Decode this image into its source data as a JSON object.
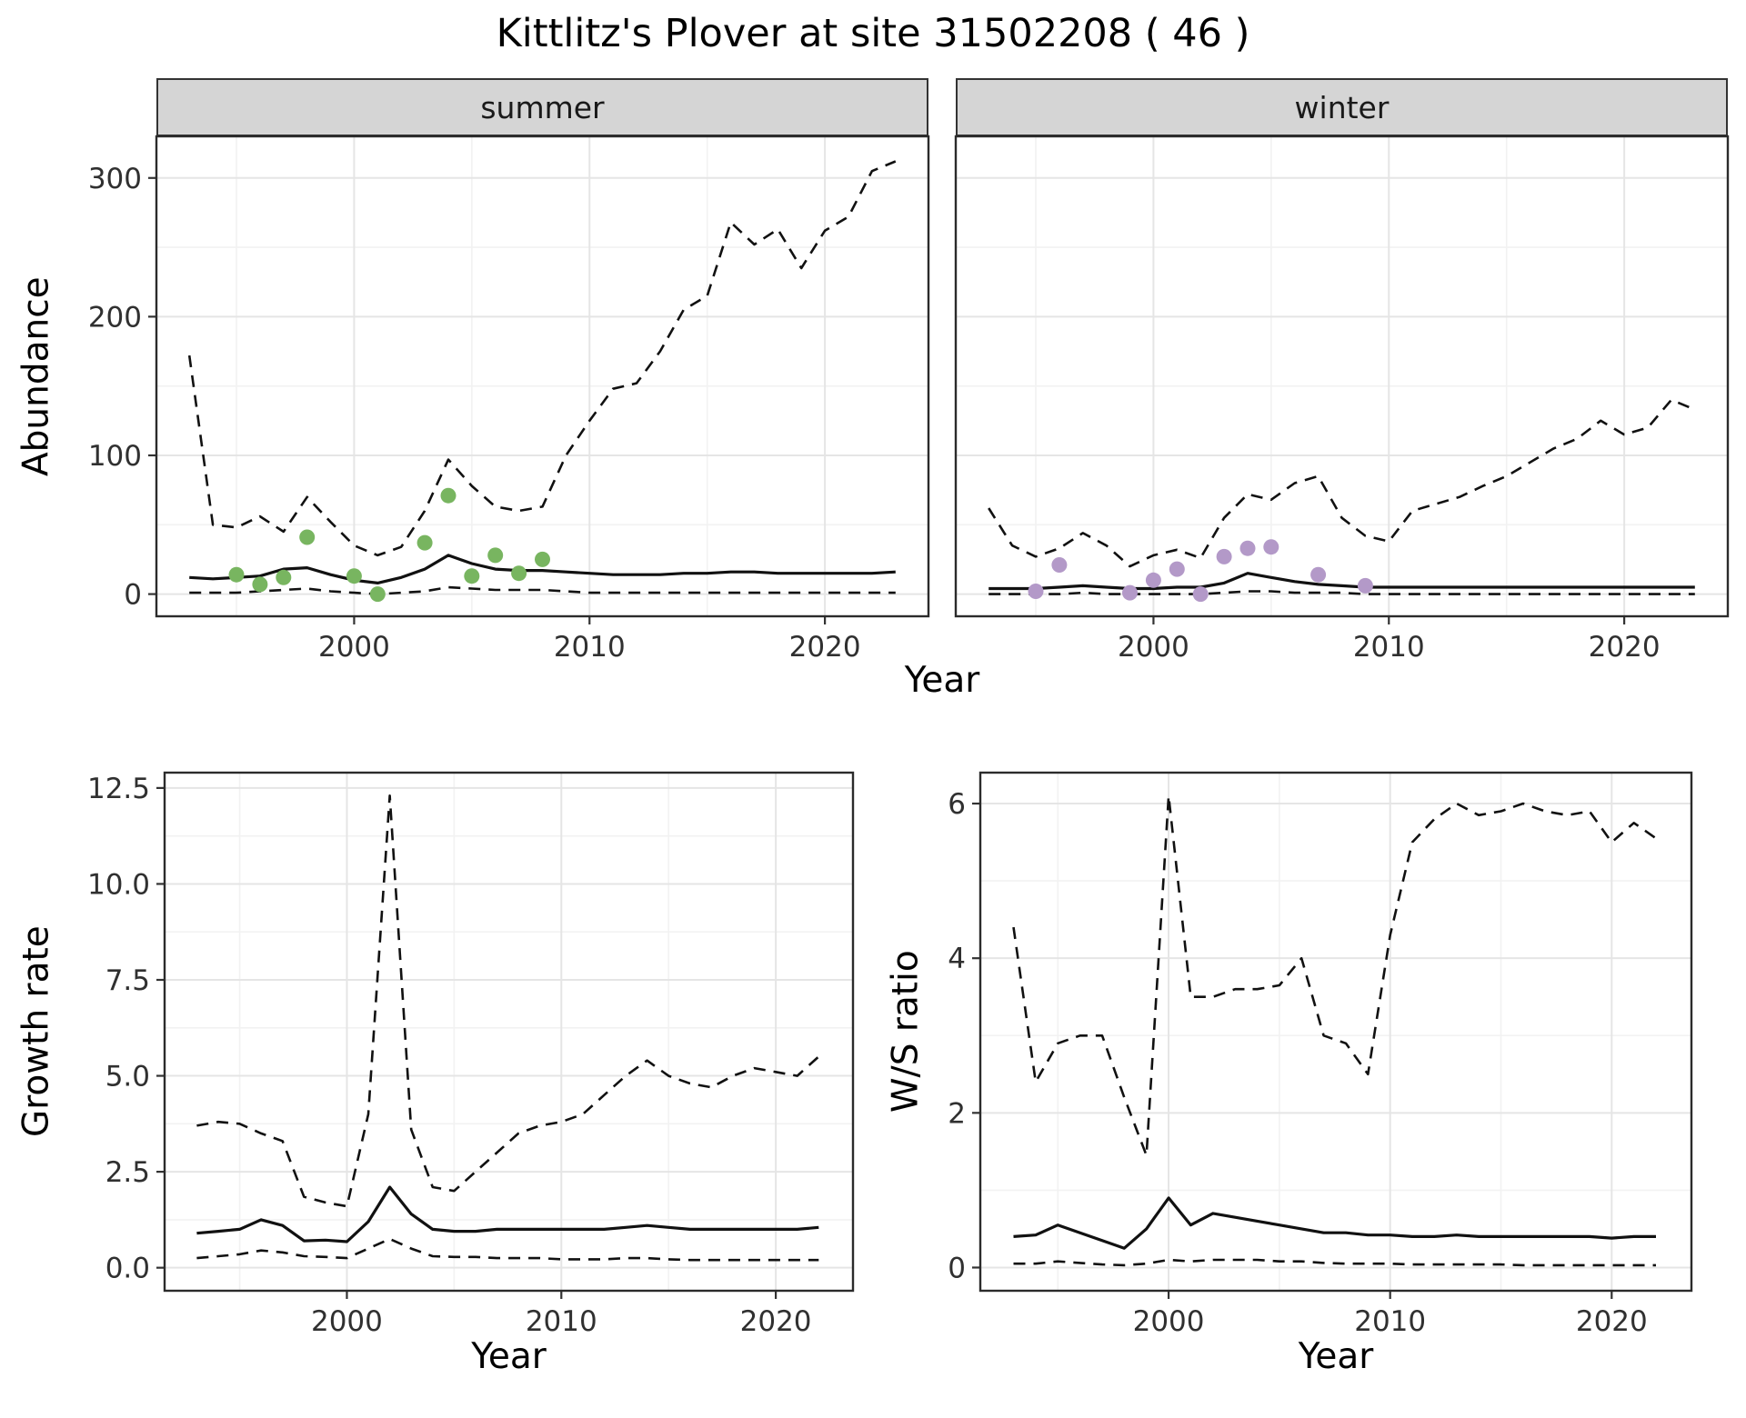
{
  "title": "Kittlitz's Plover at site 31502208 ( 46 )",
  "facets": {
    "summer": "summer",
    "winter": "winter"
  },
  "axis_titles": {
    "abundance": "Abundance",
    "year": "Year",
    "growth_rate": "Growth rate",
    "ws_ratio": "W/S ratio"
  },
  "colors": {
    "summer_points": "#78b560",
    "winter_points": "#b399c8",
    "line": "#111111",
    "strip_background": "#d5d5d5",
    "major_grid": "#e5e5e5",
    "minor_grid": "#f2f2f2"
  },
  "chart_data": [
    {
      "id": "abundance-summer",
      "type": "line",
      "panel_title": "summer",
      "xlabel": "Year",
      "ylabel": "Abundance",
      "xlim": [
        1991.6,
        2024.4
      ],
      "ylim": [
        -16,
        330
      ],
      "x_ticks": [
        2000,
        2010,
        2020
      ],
      "x_tick_labels": [
        "2000",
        "2010",
        "2020"
      ],
      "y_ticks": [
        0,
        100,
        200,
        300
      ],
      "y_tick_labels": [
        "0",
        "100",
        "200",
        "300"
      ],
      "show_y_tick_labels": true,
      "x": [
        1993,
        1994,
        1995,
        1996,
        1997,
        1998,
        1999,
        2000,
        2001,
        2002,
        2003,
        2004,
        2005,
        2006,
        2007,
        2008,
        2009,
        2010,
        2011,
        2012,
        2013,
        2014,
        2015,
        2016,
        2017,
        2018,
        2019,
        2020,
        2021,
        2022,
        2023
      ],
      "series": [
        {
          "name": "upper_interval",
          "style": "dashed",
          "values": [
            172,
            50,
            48,
            56,
            45,
            70,
            52,
            35,
            28,
            34,
            60,
            97,
            78,
            63,
            60,
            63,
            100,
            125,
            148,
            152,
            175,
            205,
            215,
            268,
            252,
            263,
            235,
            262,
            272,
            305,
            312
          ]
        },
        {
          "name": "median",
          "style": "solid",
          "values": [
            12,
            11,
            12,
            13,
            18,
            19,
            14,
            10,
            8,
            12,
            18,
            28,
            22,
            18,
            17,
            17,
            16,
            15,
            14,
            14,
            14,
            15,
            15,
            16,
            16,
            15,
            15,
            15,
            15,
            15,
            16
          ]
        },
        {
          "name": "lower_interval",
          "style": "dashed",
          "values": [
            1,
            1,
            1,
            2,
            3,
            4,
            2,
            1,
            0,
            1,
            2,
            5,
            4,
            3,
            3,
            3,
            2,
            1,
            1,
            1,
            1,
            1,
            1,
            1,
            1,
            1,
            1,
            1,
            1,
            1,
            1
          ]
        }
      ],
      "points": {
        "name": "observed-counts-summer",
        "color": "#78b560",
        "x": [
          1995,
          1996,
          1997,
          1998,
          2000,
          2001,
          2003,
          2004,
          2005,
          2006,
          2007,
          2008
        ],
        "y": [
          14,
          7,
          12,
          41,
          13,
          0,
          37,
          71,
          13,
          28,
          15,
          25
        ]
      }
    },
    {
      "id": "abundance-winter",
      "type": "line",
      "panel_title": "winter",
      "xlabel": "Year",
      "ylabel": "Abundance",
      "xlim": [
        1991.6,
        2024.4
      ],
      "ylim": [
        -16,
        330
      ],
      "x_ticks": [
        2000,
        2010,
        2020
      ],
      "x_tick_labels": [
        "2000",
        "2010",
        "2020"
      ],
      "y_ticks": [
        0,
        100,
        200,
        300
      ],
      "y_tick_labels": [
        "0",
        "100",
        "200",
        "300"
      ],
      "show_y_tick_labels": false,
      "x": [
        1993,
        1994,
        1995,
        1996,
        1997,
        1998,
        1999,
        2000,
        2001,
        2002,
        2003,
        2004,
        2005,
        2006,
        2007,
        2008,
        2009,
        2010,
        2011,
        2012,
        2013,
        2014,
        2015,
        2016,
        2017,
        2018,
        2019,
        2020,
        2021,
        2022,
        2023
      ],
      "series": [
        {
          "name": "upper_interval",
          "style": "dashed",
          "values": [
            62,
            35,
            27,
            33,
            44,
            35,
            20,
            28,
            32,
            26,
            55,
            72,
            68,
            80,
            85,
            55,
            42,
            38,
            60,
            65,
            70,
            78,
            85,
            95,
            105,
            112,
            125,
            115,
            120,
            140,
            133
          ]
        },
        {
          "name": "median",
          "style": "solid",
          "values": [
            4,
            4,
            4,
            5,
            6,
            5,
            4,
            4,
            5,
            5,
            8,
            15,
            12,
            9,
            7,
            6,
            5,
            5,
            5,
            5,
            5,
            5,
            5,
            5,
            5,
            5,
            5,
            5,
            5,
            5,
            5
          ]
        },
        {
          "name": "lower_interval",
          "style": "dashed",
          "values": [
            0,
            0,
            0,
            0,
            1,
            0,
            0,
            0,
            0,
            0,
            1,
            2,
            2,
            1,
            1,
            1,
            0,
            0,
            0,
            0,
            0,
            0,
            0,
            0,
            0,
            0,
            0,
            0,
            0,
            0,
            0
          ]
        }
      ],
      "points": {
        "name": "observed-counts-winter",
        "color": "#b399c8",
        "x": [
          1995,
          1996,
          1999,
          2000,
          2001,
          2002,
          2003,
          2004,
          2005,
          2007,
          2009
        ],
        "y": [
          2,
          21,
          1,
          10,
          18,
          0,
          27,
          33,
          34,
          14,
          6
        ]
      }
    },
    {
      "id": "growth-rate",
      "type": "line",
      "panel_title": "",
      "xlabel": "Year",
      "ylabel": "Growth rate",
      "xlim": [
        1991.5,
        2023.6
      ],
      "ylim": [
        -0.6,
        12.9
      ],
      "x_ticks": [
        2000,
        2010,
        2020
      ],
      "x_tick_labels": [
        "2000",
        "2010",
        "2020"
      ],
      "y_ticks": [
        0,
        2.5,
        5,
        7.5,
        10,
        12.5
      ],
      "y_tick_labels": [
        "0.0",
        "2.5",
        "5.0",
        "7.5",
        "10.0",
        "12.5"
      ],
      "show_y_tick_labels": true,
      "x": [
        1993,
        1994,
        1995,
        1996,
        1997,
        1998,
        1999,
        2000,
        2001,
        2002,
        2003,
        2004,
        2005,
        2006,
        2007,
        2008,
        2009,
        2010,
        2011,
        2012,
        2013,
        2014,
        2015,
        2016,
        2017,
        2018,
        2019,
        2020,
        2021,
        2022
      ],
      "series": [
        {
          "name": "upper_interval",
          "style": "dashed",
          "values": [
            3.7,
            3.8,
            3.75,
            3.5,
            3.3,
            1.85,
            1.7,
            1.6,
            4.0,
            12.3,
            3.6,
            2.1,
            2.0,
            2.5,
            3.0,
            3.5,
            3.7,
            3.8,
            4.0,
            4.5,
            5.0,
            5.4,
            5.0,
            4.8,
            4.7,
            5.0,
            5.2,
            5.1,
            5.0,
            5.5
          ]
        },
        {
          "name": "median",
          "style": "solid",
          "values": [
            0.9,
            0.95,
            1.0,
            1.25,
            1.1,
            0.7,
            0.72,
            0.68,
            1.2,
            2.1,
            1.4,
            1.0,
            0.95,
            0.95,
            1.0,
            1.0,
            1.0,
            1.0,
            1.0,
            1.0,
            1.05,
            1.1,
            1.05,
            1.0,
            1.0,
            1.0,
            1.0,
            1.0,
            1.0,
            1.05
          ]
        },
        {
          "name": "lower_interval",
          "style": "dashed",
          "values": [
            0.25,
            0.3,
            0.35,
            0.45,
            0.4,
            0.3,
            0.28,
            0.25,
            0.5,
            0.75,
            0.5,
            0.3,
            0.28,
            0.28,
            0.25,
            0.25,
            0.25,
            0.22,
            0.22,
            0.22,
            0.25,
            0.25,
            0.22,
            0.2,
            0.2,
            0.2,
            0.2,
            0.2,
            0.2,
            0.2
          ]
        }
      ]
    },
    {
      "id": "ws-ratio",
      "type": "line",
      "panel_title": "",
      "xlabel": "Year",
      "ylabel": "W/S ratio",
      "xlim": [
        1991.5,
        2023.6
      ],
      "ylim": [
        -0.3,
        6.4
      ],
      "x_ticks": [
        2000,
        2010,
        2020
      ],
      "x_tick_labels": [
        "2000",
        "2010",
        "2020"
      ],
      "y_ticks": [
        0,
        2,
        4,
        6
      ],
      "y_tick_labels": [
        "0",
        "2",
        "4",
        "6"
      ],
      "show_y_tick_labels": true,
      "x": [
        1993,
        1994,
        1995,
        1996,
        1997,
        1998,
        1999,
        2000,
        2001,
        2002,
        2003,
        2004,
        2005,
        2006,
        2007,
        2008,
        2009,
        2010,
        2011,
        2012,
        2013,
        2014,
        2015,
        2016,
        2017,
        2018,
        2019,
        2020,
        2021,
        2022
      ],
      "series": [
        {
          "name": "upper_interval",
          "style": "dashed",
          "values": [
            4.4,
            2.4,
            2.9,
            3.0,
            3.0,
            2.2,
            1.45,
            6.1,
            3.5,
            3.5,
            3.6,
            3.6,
            3.65,
            4.0,
            3.0,
            2.9,
            2.5,
            4.3,
            5.5,
            5.8,
            6.0,
            5.85,
            5.9,
            6.0,
            5.9,
            5.85,
            5.9,
            5.5,
            5.75,
            5.55
          ]
        },
        {
          "name": "median",
          "style": "solid",
          "values": [
            0.4,
            0.42,
            0.55,
            0.45,
            0.35,
            0.25,
            0.5,
            0.9,
            0.55,
            0.7,
            0.65,
            0.6,
            0.55,
            0.5,
            0.45,
            0.45,
            0.42,
            0.42,
            0.4,
            0.4,
            0.42,
            0.4,
            0.4,
            0.4,
            0.4,
            0.4,
            0.4,
            0.38,
            0.4,
            0.4
          ]
        },
        {
          "name": "lower_interval",
          "style": "dashed",
          "values": [
            0.05,
            0.05,
            0.08,
            0.06,
            0.04,
            0.03,
            0.05,
            0.1,
            0.08,
            0.1,
            0.1,
            0.1,
            0.08,
            0.08,
            0.06,
            0.05,
            0.05,
            0.05,
            0.04,
            0.04,
            0.04,
            0.04,
            0.04,
            0.03,
            0.03,
            0.03,
            0.03,
            0.03,
            0.03,
            0.03
          ]
        }
      ]
    }
  ]
}
